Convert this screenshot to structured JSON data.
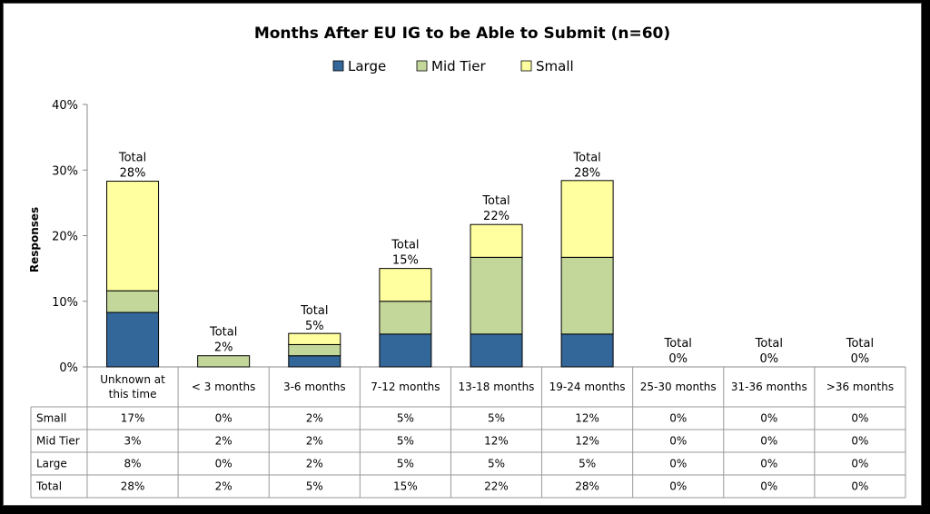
{
  "chart_data": {
    "type": "bar",
    "stacked": true,
    "title": "Months After EU IG to be Able to Submit (n=60)",
    "ylabel": "Responses",
    "ylim": [
      0,
      40
    ],
    "yticks": [
      "0%",
      "10%",
      "20%",
      "30%",
      "40%"
    ],
    "legend_position": "top",
    "categories": [
      "Unknown at this time",
      "< 3 months",
      "3-6 months",
      "7-12 months",
      "13-18 months",
      "19-24 months",
      "25-30 months",
      "31-36 months",
      ">36 months"
    ],
    "category_lines": [
      [
        "Unknown at",
        "this time"
      ],
      [
        "< 3 months"
      ],
      [
        "3-6 months"
      ],
      [
        "7-12 months"
      ],
      [
        "13-18 months"
      ],
      [
        "19-24 months"
      ],
      [
        "25-30 months"
      ],
      [
        "31-36 months"
      ],
      [
        ">36 months"
      ]
    ],
    "series": [
      {
        "name": "Large",
        "color": "#336699",
        "values": [
          8.3,
          0,
          1.7,
          5,
          5,
          5,
          0,
          0,
          0
        ]
      },
      {
        "name": "Mid Tier",
        "color": "#c4d79b",
        "values": [
          3.3,
          1.7,
          1.7,
          5,
          11.7,
          11.7,
          0,
          0,
          0
        ]
      },
      {
        "name": "Small",
        "color": "#ffffa0",
        "values": [
          16.7,
          0,
          1.7,
          5,
          5,
          11.7,
          0,
          0,
          0
        ]
      }
    ],
    "totals": {
      "label": "Total",
      "values": [
        28.3,
        1.7,
        5,
        15,
        21.7,
        28.3,
        0,
        0,
        0
      ],
      "display": [
        "28%",
        "2%",
        "5%",
        "15%",
        "22%",
        "28%",
        "0%",
        "0%",
        "0%"
      ]
    },
    "table": {
      "rows": [
        {
          "label": "Small",
          "cells": [
            "17%",
            "0%",
            "2%",
            "5%",
            "5%",
            "12%",
            "0%",
            "0%",
            "0%"
          ]
        },
        {
          "label": "Mid Tier",
          "cells": [
            "3%",
            "2%",
            "2%",
            "5%",
            "12%",
            "12%",
            "0%",
            "0%",
            "0%"
          ]
        },
        {
          "label": "Large",
          "cells": [
            "8%",
            "0%",
            "2%",
            "5%",
            "5%",
            "5%",
            "0%",
            "0%",
            "0%"
          ]
        },
        {
          "label": "Total",
          "cells": [
            "28%",
            "2%",
            "5%",
            "15%",
            "22%",
            "28%",
            "0%",
            "0%",
            "0%"
          ]
        }
      ]
    }
  }
}
